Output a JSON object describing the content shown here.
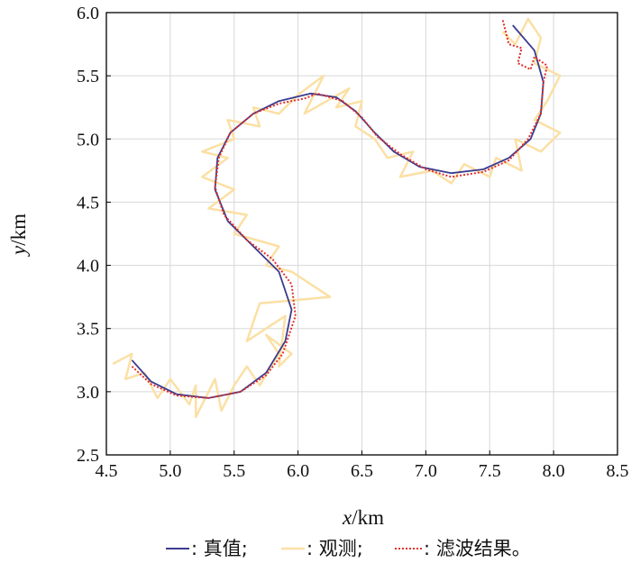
{
  "chart_data": {
    "type": "line",
    "xlabel": {
      "var": "x",
      "unit": "/km"
    },
    "ylabel": {
      "var": "y",
      "unit": "/km"
    },
    "xlim": [
      4.5,
      8.5
    ],
    "ylim": [
      2.5,
      6.0
    ],
    "xticks": [
      "4.5",
      "5.0",
      "5.5",
      "6.0",
      "6.5",
      "7.0",
      "7.5",
      "8.0",
      "8.5"
    ],
    "yticks": [
      "2.5",
      "3.0",
      "3.5",
      "4.0",
      "4.5",
      "5.0",
      "5.5",
      "6.0"
    ],
    "grid": true,
    "legend_position": "bottom",
    "series": [
      {
        "name": ": 真值;",
        "color": "#3b3b8f",
        "style": "solid",
        "points": [
          [
            4.7,
            3.25
          ],
          [
            4.85,
            3.08
          ],
          [
            5.05,
            2.98
          ],
          [
            5.3,
            2.95
          ],
          [
            5.55,
            3.0
          ],
          [
            5.75,
            3.15
          ],
          [
            5.9,
            3.4
          ],
          [
            5.95,
            3.65
          ],
          [
            5.85,
            3.95
          ],
          [
            5.65,
            4.15
          ],
          [
            5.45,
            4.35
          ],
          [
            5.35,
            4.6
          ],
          [
            5.37,
            4.85
          ],
          [
            5.47,
            5.05
          ],
          [
            5.65,
            5.2
          ],
          [
            5.85,
            5.3
          ],
          [
            6.1,
            5.36
          ],
          [
            6.3,
            5.33
          ],
          [
            6.45,
            5.22
          ],
          [
            6.6,
            5.05
          ],
          [
            6.75,
            4.9
          ],
          [
            6.95,
            4.78
          ],
          [
            7.2,
            4.73
          ],
          [
            7.45,
            4.76
          ],
          [
            7.65,
            4.85
          ],
          [
            7.82,
            5.0
          ],
          [
            7.9,
            5.2
          ],
          [
            7.92,
            5.45
          ],
          [
            7.85,
            5.7
          ],
          [
            7.68,
            5.9
          ]
        ]
      },
      {
        "name": ": 观测;",
        "color": "#fbe0a5",
        "style": "solid",
        "points": [
          [
            4.55,
            3.22
          ],
          [
            4.7,
            3.3
          ],
          [
            4.65,
            3.1
          ],
          [
            4.8,
            3.15
          ],
          [
            4.9,
            2.95
          ],
          [
            5.0,
            3.1
          ],
          [
            5.15,
            2.9
          ],
          [
            5.2,
            3.05
          ],
          [
            5.2,
            2.8
          ],
          [
            5.35,
            3.1
          ],
          [
            5.4,
            2.85
          ],
          [
            5.5,
            3.05
          ],
          [
            5.6,
            3.2
          ],
          [
            5.7,
            3.05
          ],
          [
            5.85,
            3.3
          ],
          [
            5.75,
            3.45
          ],
          [
            5.95,
            3.3
          ],
          [
            5.85,
            3.2
          ],
          [
            5.9,
            3.6
          ],
          [
            5.6,
            3.4
          ],
          [
            5.7,
            3.7
          ],
          [
            6.25,
            3.75
          ],
          [
            5.95,
            3.95
          ],
          [
            5.75,
            4.0
          ],
          [
            5.85,
            4.15
          ],
          [
            5.5,
            4.25
          ],
          [
            5.6,
            4.4
          ],
          [
            5.3,
            4.45
          ],
          [
            5.5,
            4.6
          ],
          [
            5.25,
            4.7
          ],
          [
            5.45,
            4.85
          ],
          [
            5.25,
            4.9
          ],
          [
            5.5,
            5.0
          ],
          [
            5.45,
            5.15
          ],
          [
            5.7,
            5.1
          ],
          [
            5.65,
            5.25
          ],
          [
            5.85,
            5.2
          ],
          [
            6.0,
            5.35
          ],
          [
            6.2,
            5.5
          ],
          [
            6.05,
            5.2
          ],
          [
            6.4,
            5.4
          ],
          [
            6.3,
            5.25
          ],
          [
            6.5,
            5.3
          ],
          [
            6.45,
            5.1
          ],
          [
            6.6,
            5.0
          ],
          [
            6.7,
            4.85
          ],
          [
            6.9,
            4.9
          ],
          [
            6.8,
            4.7
          ],
          [
            7.05,
            4.75
          ],
          [
            7.2,
            4.65
          ],
          [
            7.3,
            4.8
          ],
          [
            7.5,
            4.7
          ],
          [
            7.55,
            4.85
          ],
          [
            7.75,
            4.75
          ],
          [
            7.7,
            5.0
          ],
          [
            7.9,
            4.9
          ],
          [
            8.05,
            5.05
          ],
          [
            7.85,
            5.15
          ],
          [
            7.95,
            5.3
          ],
          [
            8.05,
            5.5
          ],
          [
            7.85,
            5.6
          ],
          [
            7.9,
            5.8
          ],
          [
            7.8,
            5.95
          ],
          [
            7.7,
            5.75
          ],
          [
            7.6,
            5.85
          ]
        ]
      },
      {
        "name": ": 滤波结果。",
        "color": "#e0302a",
        "style": "dotted",
        "points": [
          [
            4.7,
            3.2
          ],
          [
            4.85,
            3.06
          ],
          [
            5.05,
            2.97
          ],
          [
            5.3,
            2.95
          ],
          [
            5.55,
            3.0
          ],
          [
            5.75,
            3.13
          ],
          [
            5.88,
            3.3
          ],
          [
            5.98,
            3.6
          ],
          [
            5.95,
            3.85
          ],
          [
            5.8,
            4.05
          ],
          [
            5.6,
            4.2
          ],
          [
            5.42,
            4.4
          ],
          [
            5.35,
            4.62
          ],
          [
            5.38,
            4.85
          ],
          [
            5.47,
            5.05
          ],
          [
            5.65,
            5.2
          ],
          [
            5.85,
            5.28
          ],
          [
            6.05,
            5.32
          ],
          [
            6.15,
            5.36
          ],
          [
            6.35,
            5.3
          ],
          [
            6.5,
            5.17
          ],
          [
            6.62,
            5.02
          ],
          [
            6.8,
            4.88
          ],
          [
            7.0,
            4.76
          ],
          [
            7.2,
            4.7
          ],
          [
            7.45,
            4.74
          ],
          [
            7.65,
            4.83
          ],
          [
            7.8,
            5.0
          ],
          [
            7.9,
            5.2
          ],
          [
            7.92,
            5.45
          ],
          [
            7.95,
            5.58
          ],
          [
            7.85,
            5.65
          ],
          [
            7.82,
            5.55
          ],
          [
            7.72,
            5.6
          ],
          [
            7.75,
            5.72
          ],
          [
            7.65,
            5.75
          ],
          [
            7.6,
            5.95
          ]
        ]
      }
    ]
  }
}
